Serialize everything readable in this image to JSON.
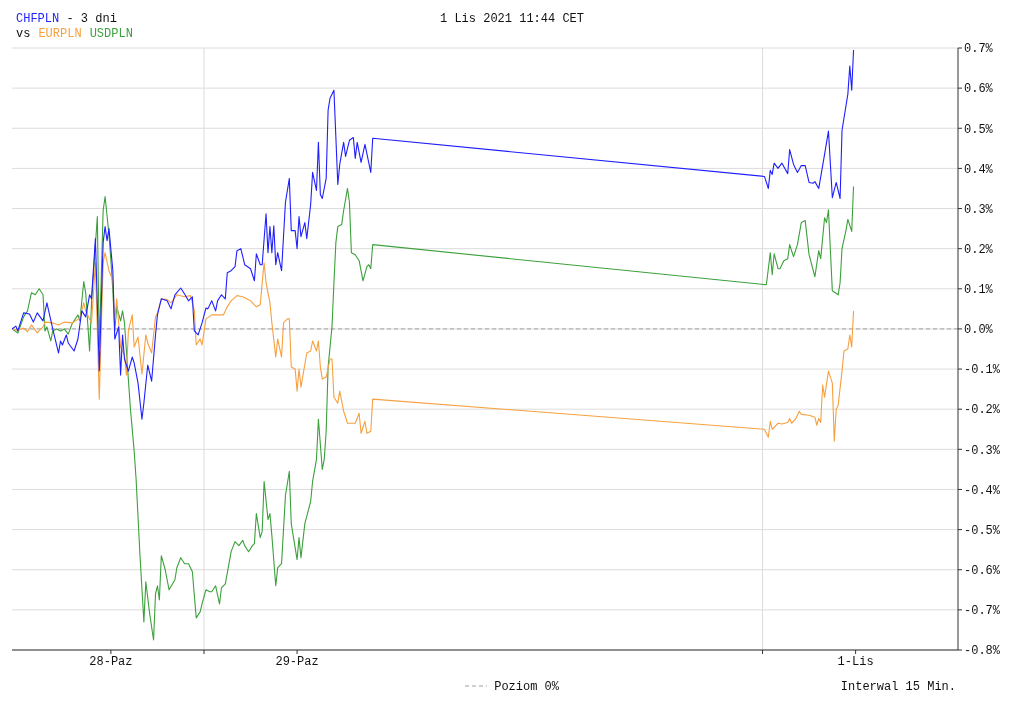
{
  "chart_data": {
    "type": "line",
    "title": "- 3 dni",
    "subtitle": "1 Lis 2021 11:44 CET",
    "legend_title": "vs",
    "legend": "bottom",
    "grid": true,
    "marker": "none",
    "line_style": "solid",
    "annotations": [
      "Interwal 15 Min."
    ],
    "xlim": [
      "2021-10-27T23:15",
      "2021-11-02T01:12"
    ],
    "xticks": [
      {
        "value": "2021-10-28T12:00",
        "label": "28-Paz"
      },
      {
        "value": "2021-10-29T00:00",
        "label": null
      },
      {
        "value": "2021-10-29T12:00",
        "label": "29-Paz"
      },
      {
        "value": "2021-11-01T00:00",
        "label": null
      },
      {
        "value": "2021-11-01T12:00",
        "label": "1-Lis"
      }
    ],
    "ylim": [
      -0.8,
      0.7
    ],
    "yticks": [
      {
        "value": -0.8,
        "label": "-0.8%"
      },
      {
        "value": -0.7,
        "label": "-0.7%"
      },
      {
        "value": -0.6,
        "label": "-0.6%"
      },
      {
        "value": -0.5,
        "label": "-0.5%"
      },
      {
        "value": -0.4,
        "label": "-0.4%"
      },
      {
        "value": -0.3,
        "label": "-0.3%"
      },
      {
        "value": -0.2,
        "label": "-0.2%"
      },
      {
        "value": -0.1,
        "label": "-0.1%"
      },
      {
        "value": 0,
        "label": "0.0%"
      },
      {
        "value": 0.1,
        "label": "0.1%"
      },
      {
        "value": 0.2,
        "label": "0.2%"
      },
      {
        "value": 0.3,
        "label": "0.3%"
      },
      {
        "value": 0.4,
        "label": "0.4%"
      },
      {
        "value": 0.5,
        "label": "0.5%"
      },
      {
        "value": 0.6,
        "label": "0.6%"
      },
      {
        "value": 0.7,
        "label": "0.7%"
      }
    ],
    "ref_lines": [
      {
        "axis": "y",
        "value": 0,
        "label": "Poziom 0%",
        "color": "#a0a0a0",
        "line_style": "dashed"
      }
    ],
    "series": [
      {
        "name": "CHFPLN",
        "color": "#1f1fff",
        "x": [
          "2021-10-27T23:15",
          "2021-10-27T23:45",
          "2021-10-28T00:00",
          "2021-10-28T00:45",
          "2021-10-28T01:30",
          "2021-10-28T02:00",
          "2021-10-28T02:30",
          "2021-10-28T03:15",
          "2021-10-28T03:45",
          "2021-10-28T04:30",
          "2021-10-28T05:15",
          "2021-10-28T05:30",
          "2021-10-28T05:45",
          "2021-10-28T06:15",
          "2021-10-28T06:30",
          "2021-10-28T07:15",
          "2021-10-28T07:45",
          "2021-10-28T08:15",
          "2021-10-28T08:45",
          "2021-10-28T09:15",
          "2021-10-28T09:30",
          "2021-10-28T10:00",
          "2021-10-28T10:30",
          "2021-10-28T11:00",
          "2021-10-28T11:15",
          "2021-10-28T11:30",
          "2021-10-28T11:45",
          "2021-10-28T12:15",
          "2021-10-28T12:30",
          "2021-10-28T13:00",
          "2021-10-28T13:15",
          "2021-10-28T13:30",
          "2021-10-28T13:45",
          "2021-10-28T14:15",
          "2021-10-28T14:45",
          "2021-10-28T15:00",
          "2021-10-28T15:30",
          "2021-10-28T16:00",
          "2021-10-28T16:15",
          "2021-10-28T16:45",
          "2021-10-28T17:15",
          "2021-10-28T17:45",
          "2021-10-28T18:00",
          "2021-10-28T18:30",
          "2021-10-28T19:15",
          "2021-10-28T19:45",
          "2021-10-28T20:15",
          "2021-10-28T21:00",
          "2021-10-28T21:30",
          "2021-10-28T22:00",
          "2021-10-28T22:30",
          "2021-10-28T22:45",
          "2021-10-28T23:15",
          "2021-10-28T23:45",
          "2021-10-29T00:15",
          "2021-10-29T00:30",
          "2021-10-29T01:00",
          "2021-10-29T01:30",
          "2021-10-29T01:45",
          "2021-10-29T02:15",
          "2021-10-29T02:45",
          "2021-10-29T03:00",
          "2021-10-29T03:30",
          "2021-10-29T04:00",
          "2021-10-29T04:15",
          "2021-10-29T04:45",
          "2021-10-29T05:15",
          "2021-10-29T06:00",
          "2021-10-29T06:30",
          "2021-10-29T06:45",
          "2021-10-29T07:15",
          "2021-10-29T07:30",
          "2021-10-29T08:00",
          "2021-10-29T08:15",
          "2021-10-29T08:30",
          "2021-10-29T08:45",
          "2021-10-29T09:00",
          "2021-10-29T09:15",
          "2021-10-29T09:30",
          "2021-10-29T10:00",
          "2021-10-29T10:30",
          "2021-10-29T11:00",
          "2021-10-29T11:15",
          "2021-10-29T11:45",
          "2021-10-29T12:00",
          "2021-10-29T12:15",
          "2021-10-29T12:30",
          "2021-10-29T13:00",
          "2021-10-29T13:15",
          "2021-10-29T13:45",
          "2021-10-29T14:00",
          "2021-10-29T14:30",
          "2021-10-29T14:45",
          "2021-10-29T15:00",
          "2021-10-29T15:15",
          "2021-10-29T15:45",
          "2021-10-29T16:00",
          "2021-10-29T16:15",
          "2021-10-29T16:45",
          "2021-10-29T17:15",
          "2021-10-29T17:30",
          "2021-10-29T18:00",
          "2021-10-29T18:15",
          "2021-10-29T18:45",
          "2021-10-29T19:15",
          "2021-10-29T19:30",
          "2021-10-29T19:45",
          "2021-10-29T20:15",
          "2021-10-29T20:45",
          "2021-10-29T21:30",
          "2021-10-29T21:45",
          "2021-11-01T00:15",
          "2021-11-01T00:45",
          "2021-11-01T01:00",
          "2021-11-01T01:15",
          "2021-11-01T01:30",
          "2021-11-01T02:00",
          "2021-11-01T02:30",
          "2021-11-01T03:15",
          "2021-11-01T03:30",
          "2021-11-01T04:00",
          "2021-11-01T04:30",
          "2021-11-01T05:00",
          "2021-11-01T05:30",
          "2021-11-01T06:00",
          "2021-11-01T06:30",
          "2021-11-01T06:45",
          "2021-11-01T07:15",
          "2021-11-01T08:00",
          "2021-11-01T08:30",
          "2021-11-01T09:00",
          "2021-11-01T09:30",
          "2021-11-01T10:00",
          "2021-11-01T10:15",
          "2021-11-01T10:30",
          "2021-11-01T11:00",
          "2021-11-01T11:15",
          "2021-11-01T11:30",
          "2021-11-01T11:44"
        ],
        "values": [
          0,
          0.007,
          -0.005,
          0.04,
          0.037,
          0.017,
          0.04,
          0.02,
          0.065,
          0,
          -0.06,
          -0.03,
          -0.04,
          -0.015,
          -0.035,
          -0.055,
          -0.025,
          0.045,
          0.03,
          0.085,
          0.075,
          0.225,
          -0.105,
          0.215,
          0.255,
          0.22,
          0.25,
          0.145,
          -0.025,
          0.005,
          -0.115,
          -0.015,
          -0.075,
          -0.105,
          -0.07,
          -0.085,
          -0.135,
          -0.225,
          -0.185,
          -0.09,
          -0.13,
          -0.015,
          0.035,
          0.075,
          0.07,
          0.05,
          0.085,
          0.102,
          0.087,
          0.07,
          0.08,
          -0.005,
          -0.015,
          0.015,
          0.052,
          0.05,
          0.07,
          0.045,
          0.07,
          0.085,
          0.075,
          0.14,
          0.145,
          0.155,
          0.195,
          0.2,
          0.16,
          0.15,
          0.12,
          0.187,
          0.16,
          0.16,
          0.287,
          0.19,
          0.255,
          0.19,
          0.257,
          0.16,
          0.19,
          0.145,
          0.315,
          0.375,
          0.245,
          0.245,
          0.2,
          0.28,
          0.23,
          0.265,
          0.225,
          0.31,
          0.39,
          0.345,
          0.465,
          0.335,
          0.325,
          0.375,
          0.545,
          0.575,
          0.595,
          0.36,
          0.41,
          0.465,
          0.43,
          0.47,
          0.477,
          0.425,
          0.465,
          0.415,
          0.46,
          0.39,
          0.475,
          0.38,
          0.35,
          0.395,
          0.385,
          0.413,
          0.4,
          0.413,
          0.387,
          0.447,
          0.41,
          0.39,
          0.407,
          0.407,
          0.365,
          0.363,
          0.367,
          0.35,
          0.435,
          0.493,
          0.327,
          0.365,
          0.325,
          0.495,
          0.525,
          0.585,
          0.655,
          0.595,
          0.695
        ]
      },
      {
        "name": "EURPLN",
        "color": "#f7a040",
        "x": [
          "2021-10-27T23:15",
          "2021-10-28T00:00",
          "2021-10-28T00:45",
          "2021-10-28T01:15",
          "2021-10-28T01:45",
          "2021-10-28T02:30",
          "2021-10-28T03:15",
          "2021-10-28T03:30",
          "2021-10-28T04:30",
          "2021-10-28T05:15",
          "2021-10-28T06:00",
          "2021-10-28T07:00",
          "2021-10-28T08:00",
          "2021-10-28T08:30",
          "2021-10-28T08:45",
          "2021-10-28T09:30",
          "2021-10-28T10:00",
          "2021-10-28T10:30",
          "2021-10-28T11:00",
          "2021-10-28T11:15",
          "2021-10-28T11:45",
          "2021-10-28T12:15",
          "2021-10-28T12:30",
          "2021-10-28T12:45",
          "2021-10-28T13:15",
          "2021-10-28T13:45",
          "2021-10-28T14:00",
          "2021-10-28T14:15",
          "2021-10-28T14:45",
          "2021-10-28T15:00",
          "2021-10-28T15:30",
          "2021-10-28T16:00",
          "2021-10-28T16:30",
          "2021-10-28T16:45",
          "2021-10-28T17:15",
          "2021-10-28T17:45",
          "2021-10-28T18:00",
          "2021-10-28T18:30",
          "2021-10-28T19:15",
          "2021-10-28T19:45",
          "2021-10-28T20:30",
          "2021-10-28T21:30",
          "2021-10-28T22:15",
          "2021-10-28T22:45",
          "2021-10-28T23:00",
          "2021-10-28T23:30",
          "2021-10-28T23:45",
          "2021-10-29T00:15",
          "2021-10-29T01:00",
          "2021-10-29T01:45",
          "2021-10-29T02:30",
          "2021-10-29T03:00",
          "2021-10-29T03:30",
          "2021-10-29T04:15",
          "2021-10-29T05:00",
          "2021-10-29T06:00",
          "2021-10-29T06:45",
          "2021-10-29T07:15",
          "2021-10-29T07:30",
          "2021-10-29T07:45",
          "2021-10-29T08:00",
          "2021-10-29T08:30",
          "2021-10-29T08:45",
          "2021-10-29T09:15",
          "2021-10-29T09:30",
          "2021-10-29T10:00",
          "2021-10-29T10:15",
          "2021-10-29T10:45",
          "2021-10-29T11:00",
          "2021-10-29T11:15",
          "2021-10-29T11:45",
          "2021-10-29T12:00",
          "2021-10-29T12:15",
          "2021-10-29T12:30",
          "2021-10-29T13:15",
          "2021-10-29T13:45",
          "2021-10-29T14:00",
          "2021-10-29T14:30",
          "2021-10-29T14:45",
          "2021-10-29T15:00",
          "2021-10-29T15:15",
          "2021-10-29T15:45",
          "2021-10-29T16:15",
          "2021-10-29T16:30",
          "2021-10-29T16:45",
          "2021-10-29T17:15",
          "2021-10-29T17:30",
          "2021-10-29T18:00",
          "2021-10-29T18:30",
          "2021-10-29T19:30",
          "2021-10-29T20:00",
          "2021-10-29T20:15",
          "2021-10-29T20:45",
          "2021-10-29T21:00",
          "2021-10-29T21:30",
          "2021-10-29T21:45",
          "2021-11-01T00:15",
          "2021-11-01T00:45",
          "2021-11-01T01:00",
          "2021-11-01T01:15",
          "2021-11-01T02:00",
          "2021-11-01T02:30",
          "2021-11-01T03:15",
          "2021-11-01T03:30",
          "2021-11-01T03:45",
          "2021-11-01T04:15",
          "2021-11-01T04:45",
          "2021-11-01T05:00",
          "2021-11-01T06:00",
          "2021-11-01T06:45",
          "2021-11-01T07:00",
          "2021-11-01T07:15",
          "2021-11-01T07:30",
          "2021-11-01T07:45",
          "2021-11-01T08:00",
          "2021-11-01T08:30",
          "2021-11-01T09:00",
          "2021-11-01T09:15",
          "2021-11-01T09:30",
          "2021-11-01T09:45",
          "2021-11-01T10:15",
          "2021-11-01T10:30",
          "2021-11-01T11:00",
          "2021-11-01T11:15",
          "2021-11-01T11:30",
          "2021-11-01T11:44"
        ],
        "values": [
          0,
          -0.003,
          0.002,
          -0.007,
          0.01,
          -0.01,
          0.005,
          0.017,
          0.015,
          0.01,
          0.017,
          0.015,
          0.027,
          0.065,
          0.045,
          0.015,
          0.165,
          -0.175,
          0.165,
          0.19,
          0.145,
          0.12,
          0.02,
          0.075,
          -0.045,
          -0.065,
          -0.115,
          -0.005,
          0.035,
          -0.045,
          -0.02,
          -0.113,
          -0.015,
          -0.035,
          -0.06,
          0.03,
          0.04,
          0.075,
          0.073,
          0.065,
          0.085,
          0.08,
          0.083,
          0.047,
          -0.04,
          -0.025,
          -0.04,
          0.025,
          0.035,
          0.035,
          0.035,
          0.055,
          0.07,
          0.083,
          0.08,
          0.07,
          0.055,
          0.06,
          0.115,
          0.165,
          0.115,
          0.065,
          0.015,
          -0.07,
          -0.025,
          -0.07,
          0.015,
          0.025,
          0.025,
          -0.095,
          -0.1,
          -0.155,
          -0.1,
          -0.145,
          -0.06,
          -0.055,
          -0.03,
          -0.055,
          -0.03,
          -0.095,
          -0.125,
          -0.12,
          -0.075,
          -0.075,
          -0.17,
          -0.185,
          -0.155,
          -0.205,
          -0.235,
          -0.235,
          -0.21,
          -0.26,
          -0.23,
          -0.26,
          -0.255,
          -0.175,
          -0.25,
          -0.27,
          -0.23,
          -0.25,
          -0.235,
          -0.237,
          -0.233,
          -0.223,
          -0.235,
          -0.225,
          -0.205,
          -0.213,
          -0.215,
          -0.22,
          -0.24,
          -0.223,
          -0.233,
          -0.14,
          -0.17,
          -0.105,
          -0.135,
          -0.28,
          -0.2,
          -0.19,
          -0.105,
          -0.055,
          -0.05,
          -0.015,
          -0.045,
          0.045
        ]
      },
      {
        "name": "USDPLN",
        "color": "#3ca03c",
        "x": [
          "2021-10-27T23:15",
          "2021-10-28T00:00",
          "2021-10-28T00:45",
          "2021-10-28T01:15",
          "2021-10-28T01:45",
          "2021-10-28T02:15",
          "2021-10-28T02:45",
          "2021-10-28T03:15",
          "2021-10-28T03:30",
          "2021-10-28T03:45",
          "2021-10-28T04:15",
          "2021-10-28T04:30",
          "2021-10-28T05:00",
          "2021-10-28T05:30",
          "2021-10-28T06:00",
          "2021-10-28T06:30",
          "2021-10-28T07:00",
          "2021-10-28T07:45",
          "2021-10-28T08:00",
          "2021-10-28T08:30",
          "2021-10-28T08:45",
          "2021-10-28T09:15",
          "2021-10-28T09:30",
          "2021-10-28T10:15",
          "2021-10-28T10:30",
          "2021-10-28T11:00",
          "2021-10-28T11:15",
          "2021-10-28T11:45",
          "2021-10-28T12:00",
          "2021-10-28T12:15",
          "2021-10-28T12:30",
          "2021-10-28T12:45",
          "2021-10-28T13:15",
          "2021-10-28T13:30",
          "2021-10-28T13:45",
          "2021-10-28T14:15",
          "2021-10-28T14:30",
          "2021-10-28T15:00",
          "2021-10-28T15:15",
          "2021-10-28T15:45",
          "2021-10-28T16:15",
          "2021-10-28T16:30",
          "2021-10-28T17:00",
          "2021-10-28T17:30",
          "2021-10-28T17:45",
          "2021-10-28T18:00",
          "2021-10-28T18:15",
          "2021-10-28T18:30",
          "2021-10-28T19:00",
          "2021-10-28T19:30",
          "2021-10-28T20:15",
          "2021-10-28T20:30",
          "2021-10-28T21:00",
          "2021-10-28T21:30",
          "2021-10-28T22:00",
          "2021-10-28T22:30",
          "2021-10-28T23:00",
          "2021-10-28T23:30",
          "2021-10-28T23:45",
          "2021-10-29T00:15",
          "2021-10-29T00:45",
          "2021-10-29T01:00",
          "2021-10-29T01:30",
          "2021-10-29T02:00",
          "2021-10-29T02:15",
          "2021-10-29T02:45",
          "2021-10-29T03:30",
          "2021-10-29T04:00",
          "2021-10-29T04:30",
          "2021-10-29T05:00",
          "2021-10-29T05:15",
          "2021-10-29T05:45",
          "2021-10-29T06:15",
          "2021-10-29T06:30",
          "2021-10-29T06:45",
          "2021-10-29T07:15",
          "2021-10-29T07:30",
          "2021-10-29T07:45",
          "2021-10-29T08:15",
          "2021-10-29T08:30",
          "2021-10-29T08:45",
          "2021-10-29T09:15",
          "2021-10-29T09:30",
          "2021-10-29T10:00",
          "2021-10-29T10:30",
          "2021-10-29T11:00",
          "2021-10-29T11:15",
          "2021-10-29T11:30",
          "2021-10-29T12:00",
          "2021-10-29T12:15",
          "2021-10-29T12:30",
          "2021-10-29T13:00",
          "2021-10-29T13:45",
          "2021-10-29T14:00",
          "2021-10-29T14:30",
          "2021-10-29T14:45",
          "2021-10-29T15:15",
          "2021-10-29T15:30",
          "2021-10-29T15:45",
          "2021-10-29T16:00",
          "2021-10-29T16:30",
          "2021-10-29T16:45",
          "2021-10-29T17:00",
          "2021-10-29T17:15",
          "2021-10-29T17:45",
          "2021-10-29T18:00",
          "2021-10-29T18:30",
          "2021-10-29T18:45",
          "2021-10-29T19:00",
          "2021-10-29T19:30",
          "2021-10-29T20:00",
          "2021-10-29T20:30",
          "2021-10-29T21:00",
          "2021-10-29T21:15",
          "2021-10-29T21:30",
          "2021-10-29T21:45",
          "2021-11-01T00:30",
          "2021-11-01T01:00",
          "2021-11-01T01:15",
          "2021-11-01T01:30",
          "2021-11-01T02:00",
          "2021-11-01T02:15",
          "2021-11-01T02:45",
          "2021-11-01T03:15",
          "2021-11-01T03:30",
          "2021-11-01T04:00",
          "2021-11-01T04:30",
          "2021-11-01T05:00",
          "2021-11-01T05:30",
          "2021-11-01T06:00",
          "2021-11-01T06:45",
          "2021-11-01T07:15",
          "2021-11-01T07:30",
          "2021-11-01T08:00",
          "2021-11-01T08:15",
          "2021-11-01T08:30",
          "2021-11-01T09:00",
          "2021-11-01T09:45",
          "2021-11-01T10:00",
          "2021-11-01T10:15",
          "2021-11-01T10:45",
          "2021-11-01T11:00",
          "2021-11-01T11:30",
          "2021-11-01T11:44"
        ],
        "values": [
          0,
          -0.01,
          0.03,
          0.045,
          0.09,
          0.085,
          0.1,
          0.085,
          -0.005,
          0.005,
          -0.03,
          -0.005,
          0,
          -0.005,
          0,
          -0.013,
          0.013,
          0.035,
          0.02,
          0.118,
          0.09,
          -0.055,
          0.065,
          0.28,
          -0.045,
          0.295,
          0.33,
          0.235,
          0.17,
          0.095,
          -0.005,
          0.055,
          0.02,
          0.045,
          0.015,
          -0.125,
          -0.195,
          -0.305,
          -0.375,
          -0.565,
          -0.73,
          -0.63,
          -0.71,
          -0.775,
          -0.66,
          -0.64,
          -0.675,
          -0.565,
          -0.6,
          -0.65,
          -0.625,
          -0.595,
          -0.57,
          -0.585,
          -0.585,
          -0.605,
          -0.72,
          -0.705,
          -0.685,
          -0.65,
          -0.655,
          -0.655,
          -0.64,
          -0.685,
          -0.645,
          -0.635,
          -0.555,
          -0.53,
          -0.54,
          -0.527,
          -0.54,
          -0.555,
          -0.54,
          -0.535,
          -0.46,
          -0.52,
          -0.505,
          -0.38,
          -0.475,
          -0.46,
          -0.515,
          -0.64,
          -0.595,
          -0.585,
          -0.415,
          -0.355,
          -0.485,
          -0.515,
          -0.575,
          -0.52,
          -0.57,
          -0.485,
          -0.43,
          -0.38,
          -0.325,
          -0.225,
          -0.35,
          -0.325,
          -0.255,
          -0.095,
          0.005,
          0.115,
          0.215,
          0.255,
          0.26,
          0.295,
          0.35,
          0.315,
          0.19,
          0.185,
          0.17,
          0.12,
          0.155,
          0.16,
          0.15,
          0.21,
          0.11,
          0.19,
          0.135,
          0.187,
          0.15,
          0.15,
          0.17,
          0.175,
          0.21,
          0.18,
          0.21,
          0.265,
          0.27,
          0.185,
          0.13,
          0.195,
          0.175,
          0.277,
          0.265,
          0.297,
          0.095,
          0.085,
          0.115,
          0.2,
          0.245,
          0.273,
          0.243,
          0.355
        ]
      }
    ]
  }
}
